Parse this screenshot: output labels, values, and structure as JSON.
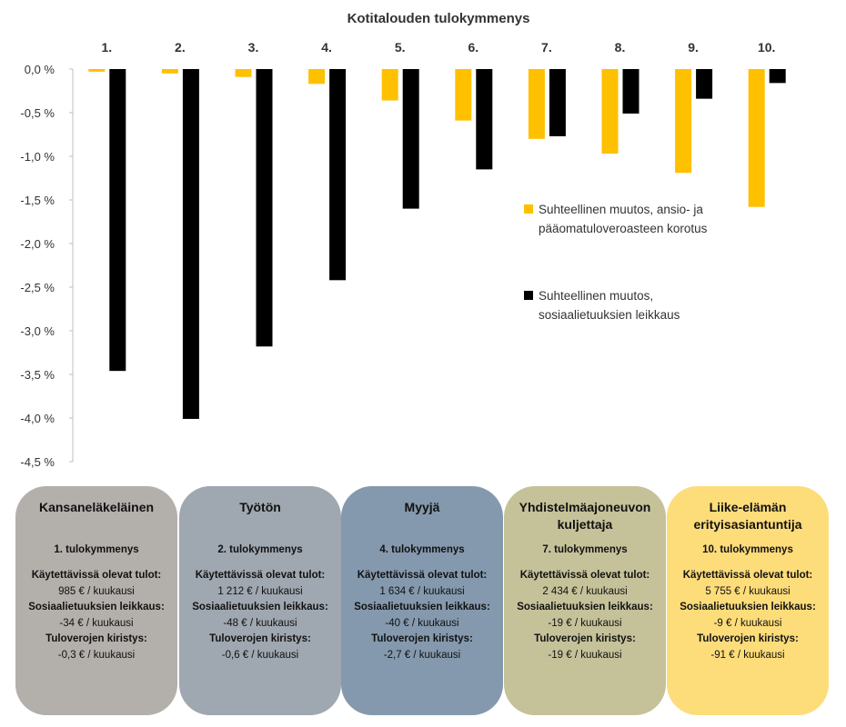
{
  "chart_data": {
    "type": "bar",
    "title": "Kotitalouden tulokymmenys",
    "categories": [
      "1.",
      "2.",
      "3.",
      "4.",
      "5.",
      "6.",
      "7.",
      "8.",
      "9.",
      "10."
    ],
    "ytick_labels": [
      "0,0 %",
      "-0,5 %",
      "-1,0 %",
      "-1,5 %",
      "-2,0 %",
      "-2,5 %",
      "-3,0 %",
      "-3,5 %",
      "-4,0 %",
      "-4,5 %"
    ],
    "ylim": [
      -4.5,
      0
    ],
    "grid": false,
    "legend_position": "right",
    "series": [
      {
        "name": "Suhteellinen muutos, ansio- ja pääomatuloveroasteen korotus",
        "legend_lines": [
          "Suhteellinen muutos, ansio- ja",
          "pääomatuloveroasteen korotus"
        ],
        "color": "#FFC000",
        "values": [
          -0.03,
          -0.05,
          -0.09,
          -0.17,
          -0.36,
          -0.59,
          -0.8,
          -0.97,
          -1.19,
          -1.58
        ]
      },
      {
        "name": "Suhteellinen muutos, sosiaalietuuksien leikkaus",
        "legend_lines": [
          "Suhteellinen muutos,",
          "sosiaalietuuksien leikkaus"
        ],
        "color": "#000000",
        "values": [
          -3.46,
          -4.01,
          -3.18,
          -2.42,
          -1.6,
          -1.15,
          -0.77,
          -0.51,
          -0.34,
          -0.16
        ]
      }
    ]
  },
  "cards": [
    {
      "title": "Kansaneläkeläinen",
      "decile": "1. tulokymmenys",
      "color": "#B3AFAB",
      "income_label": "Käytettävissä olevat tulot:",
      "income_value": "985 € / kuukausi",
      "benefit_label": "Sosiaalietuuksien leikkaus:",
      "benefit_value": "-34 € / kuukausi",
      "tax_label": "Tuloverojen kiristys:",
      "tax_value": "-0,3 € / kuukausi"
    },
    {
      "title": "Työtön",
      "decile": "2. tulokymmenys",
      "color": "#9FA7B0",
      "income_label": "Käytettävissä olevat tulot:",
      "income_value": "1 212 € / kuukausi",
      "benefit_label": "Sosiaalietuuksien leikkaus:",
      "benefit_value": "-48 € / kuukausi",
      "tax_label": "Tuloverojen kiristys:",
      "tax_value": "-0,6 € / kuukausi"
    },
    {
      "title": "Myyjä",
      "decile": "4. tulokymmenys",
      "color": "#8499AD",
      "income_label": "Käytettävissä olevat tulot:",
      "income_value": "1 634 € / kuukausi",
      "benefit_label": "Sosiaalietuuksien leikkaus:",
      "benefit_value": "-40 € / kuukausi",
      "tax_label": "Tuloverojen kiristys:",
      "tax_value": "-2,7 € / kuukausi"
    },
    {
      "title": "Yhdistelmäajoneuvon kuljettaja",
      "decile": "7. tulokymmenys",
      "color": "#C5C199",
      "income_label": "Käytettävissä olevat tulot:",
      "income_value": "2 434 € / kuukausi",
      "benefit_label": "Sosiaalietuuksien leikkaus:",
      "benefit_value": "-19 € / kuukausi",
      "tax_label": "Tuloverojen kiristys:",
      "tax_value": "-19 € / kuukausi"
    },
    {
      "title": "Liike-elämän erityisasiantuntija",
      "decile": "10. tulokymmenys",
      "color": "#FDDC7A",
      "income_label": "Käytettävissä olevat tulot:",
      "income_value": "5 755 € / kuukausi",
      "benefit_label": "Sosiaalietuuksien leikkaus:",
      "benefit_value": "-9 € / kuukausi",
      "tax_label": "Tuloverojen kiristys:",
      "tax_value": "-91 € / kuukausi"
    }
  ]
}
